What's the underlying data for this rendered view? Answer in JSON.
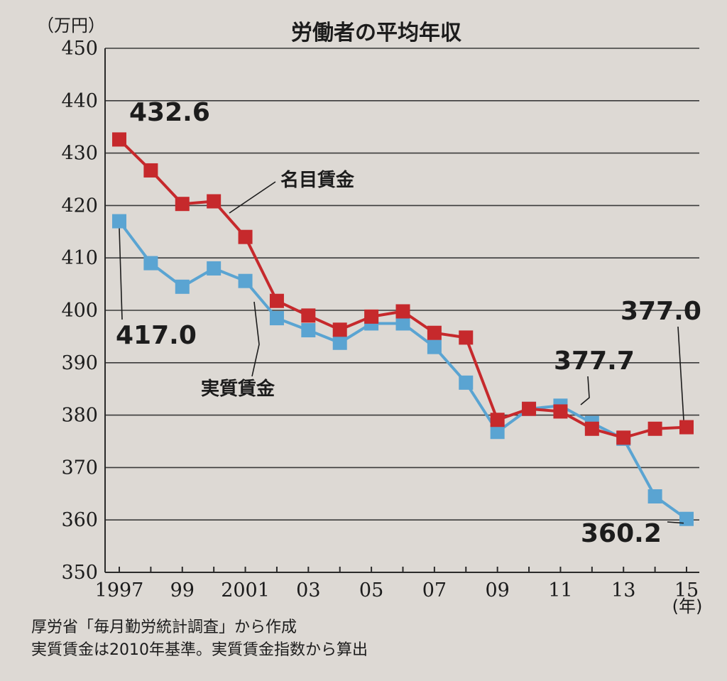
{
  "chart_data": {
    "type": "line",
    "title": "労働者の平均年収",
    "unit_label": "（万円）",
    "x_unit_label": "(年)",
    "x": [
      1997,
      1998,
      1999,
      2000,
      2001,
      2002,
      2003,
      2004,
      2005,
      2006,
      2007,
      2008,
      2009,
      2010,
      2011,
      2012,
      2013,
      2014,
      2015
    ],
    "x_tick_labels": [
      {
        "x": 1997,
        "label": "1997"
      },
      {
        "x": 1999,
        "label": "99"
      },
      {
        "x": 2001,
        "label": "2001"
      },
      {
        "x": 2003,
        "label": "03"
      },
      {
        "x": 2005,
        "label": "05"
      },
      {
        "x": 2007,
        "label": "07"
      },
      {
        "x": 2009,
        "label": "09"
      },
      {
        "x": 2011,
        "label": "11"
      },
      {
        "x": 2013,
        "label": "13"
      },
      {
        "x": 2015,
        "label": "15"
      }
    ],
    "y_ticks": [
      350,
      360,
      370,
      380,
      390,
      400,
      410,
      420,
      430,
      440,
      450
    ],
    "ylim": [
      350,
      450
    ],
    "grid": true,
    "series": [
      {
        "name": "名目賃金",
        "color": "#c6292c",
        "values": [
          432.6,
          426.7,
          420.3,
          420.8,
          414.0,
          401.8,
          399.0,
          396.3,
          398.8,
          399.8,
          395.7,
          394.8,
          379.1,
          381.2,
          380.7,
          377.4,
          375.7,
          377.4,
          377.7
        ]
      },
      {
        "name": "実質賃金",
        "color": "#5aa4d2",
        "values": [
          417.0,
          409.0,
          404.5,
          408.0,
          405.6,
          398.5,
          396.2,
          393.8,
          397.5,
          397.5,
          393.0,
          386.2,
          376.8,
          381.2,
          381.8,
          378.5,
          375.5,
          364.5,
          360.2
        ]
      }
    ],
    "annotations": [
      {
        "text": "432.6"
      },
      {
        "text": "417.0"
      },
      {
        "text": "377.7"
      },
      {
        "text": "377.0"
      },
      {
        "text": "360.2"
      }
    ]
  },
  "notes": [
    "厚労省「毎月勤労統計調査」から作成",
    "実質賃金は2010年基準。実質賃金指数から算出"
  ]
}
